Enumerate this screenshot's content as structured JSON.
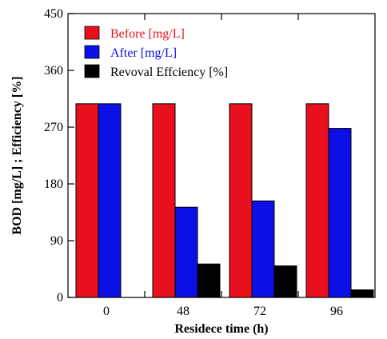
{
  "chart_data": {
    "type": "bar",
    "title": "",
    "xlabel": "Residece time (h)",
    "ylabel": "BOD [mg/L] ; Efficiency [%]",
    "categories": [
      "0",
      "48",
      "72",
      "96"
    ],
    "ylim": [
      0,
      450
    ],
    "yticks": [
      0,
      90,
      180,
      270,
      360,
      450
    ],
    "grid": false,
    "legend_position": "top-left",
    "series": [
      {
        "name": "Before [mg/L]",
        "color": "#e8101c",
        "label_color": "#e8101c",
        "values": [
          307,
          307,
          307,
          307
        ]
      },
      {
        "name": "After [mg/L]",
        "color": "#0a10e6",
        "label_color": "#0a10e6",
        "values": [
          307,
          143,
          153,
          268
        ]
      },
      {
        "name": "Revoval Effciency [%]",
        "color": "#000000",
        "label_color": "#000000",
        "values": [
          0,
          53,
          50,
          12
        ]
      }
    ]
  }
}
